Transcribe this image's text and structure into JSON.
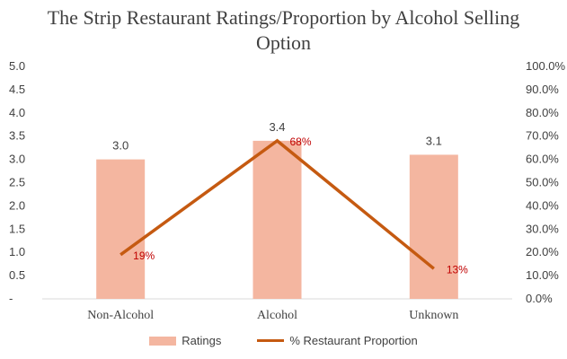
{
  "chart_data": {
    "type": "bar",
    "title": "The Strip Restaurant Ratings/Proportion by Alcohol Selling Option",
    "categories": [
      "Non-Alcohol",
      "Alcohol",
      "Unknown"
    ],
    "series": [
      {
        "name": "Ratings",
        "type": "bar",
        "axis": "left",
        "values": [
          3.0,
          3.4,
          3.1
        ],
        "labels": [
          "3.0",
          "3.4",
          "3.1"
        ],
        "color": "#f4b6a0"
      },
      {
        "name": "% Restaurant Proportion",
        "type": "line",
        "axis": "right",
        "values": [
          0.19,
          0.68,
          0.13
        ],
        "labels": [
          "19%",
          "68%",
          "13%"
        ],
        "color": "#c55a11",
        "label_color": "#c00000"
      }
    ],
    "y_left": {
      "ylim": [
        0,
        5
      ],
      "ticks": [
        "-",
        "0.5",
        "1.0",
        "1.5",
        "2.0",
        "2.5",
        "3.0",
        "3.5",
        "4.0",
        "4.5",
        "5.0"
      ]
    },
    "y_right": {
      "ylim": [
        0,
        1
      ],
      "ticks": [
        "0.0%",
        "10.0%",
        "20.0%",
        "30.0%",
        "40.0%",
        "50.0%",
        "60.0%",
        "70.0%",
        "80.0%",
        "90.0%",
        "100.0%"
      ]
    },
    "grid": false,
    "legend": "bottom"
  }
}
